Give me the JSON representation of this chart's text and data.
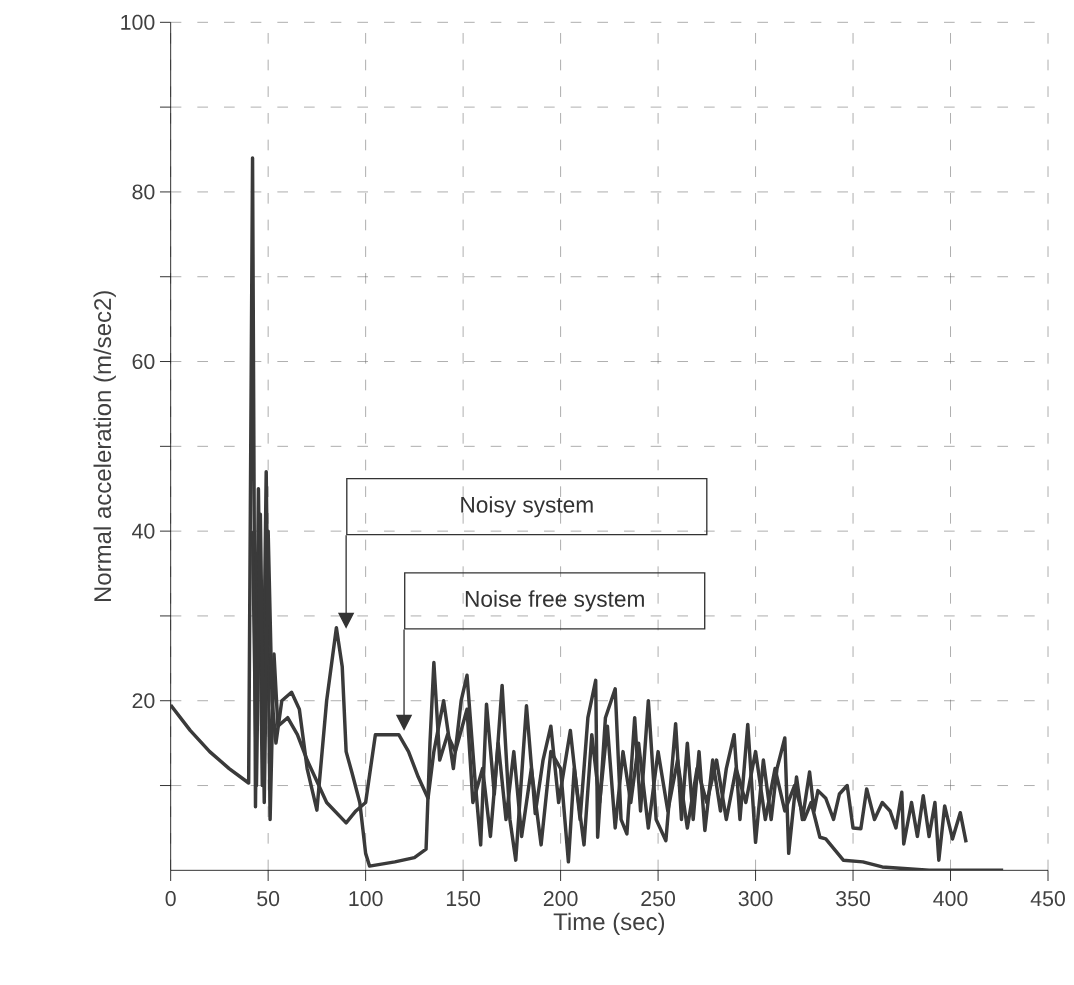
{
  "chart_data": {
    "type": "line",
    "xlabel": "Time (sec)",
    "ylabel": "Normal acceleration (m/sec2)",
    "xlim": [
      0,
      450
    ],
    "ylim": [
      0,
      100
    ],
    "xticks": [
      0,
      50,
      100,
      150,
      200,
      250,
      300,
      350,
      400,
      450
    ],
    "yticks": [
      {
        "value": 10,
        "label": null
      },
      20,
      {
        "value": 30,
        "label": null
      },
      40,
      {
        "value": 50,
        "label": null
      },
      60,
      {
        "value": 70,
        "label": null
      },
      80,
      {
        "value": 90,
        "label": null
      },
      100
    ],
    "grid": true,
    "marker": "none",
    "line_style": "solid",
    "tick_labels": "xy",
    "series": [
      {
        "color": "#3a3a3a",
        "x": [
          0,
          10,
          20,
          30,
          40,
          42,
          43.5,
          45,
          47,
          49,
          51,
          53,
          55,
          60,
          65,
          70,
          80,
          90,
          95,
          100,
          105,
          117,
          122,
          127,
          132,
          135,
          140,
          145,
          149,
          152,
          156,
          159,
          162,
          166,
          170,
          174,
          177,
          182.5,
          187,
          191,
          195,
          199,
          205,
          210,
          214,
          218,
          219,
          223,
          228,
          231,
          234,
          238,
          241,
          245,
          249,
          254,
          259,
          262,
          265,
          268,
          271,
          274,
          278,
          282,
          285,
          289,
          292,
          296,
          300,
          304,
          308,
          311,
          315,
          317,
          321,
          324,
          327.7,
          330,
          332,
          336,
          340,
          343,
          347,
          350,
          354,
          357,
          361,
          365,
          369,
          372,
          375,
          376,
          380,
          383,
          386,
          389,
          392,
          394,
          397,
          401,
          405,
          408
        ],
        "values": [
          19.5,
          16.5,
          14,
          12,
          10.3,
          84,
          7.5,
          45,
          10,
          47,
          6,
          25.5,
          17,
          18,
          16,
          13,
          8,
          5.6,
          7,
          8,
          16,
          16,
          14,
          11,
          8.5,
          14,
          20,
          12,
          20,
          23,
          11,
          3,
          19.6,
          9,
          21.8,
          6,
          1.2,
          19.4,
          6.7,
          13,
          17,
          8,
          16.5,
          6,
          18,
          22.4,
          3.9,
          18,
          21.4,
          6,
          4.3,
          18,
          7,
          20,
          6,
          3.5,
          17.3,
          6,
          15,
          6,
          14,
          4.7,
          13,
          7,
          12,
          16,
          6,
          17.2,
          3.3,
          13,
          6,
          12,
          15.6,
          2,
          11,
          6,
          11.6,
          7,
          9.4,
          8.5,
          6,
          9,
          10,
          5,
          4.9,
          9.6,
          6,
          8,
          7,
          5,
          9.2,
          3.1,
          8,
          4,
          8.8,
          4,
          8,
          1.2,
          7.6,
          3.7,
          6.8,
          3.3
        ]
      },
      {
        "color": "#3a3a3a",
        "x": [
          42,
          44,
          46,
          48,
          50,
          52,
          54,
          57,
          62,
          66,
          70,
          75,
          80,
          85,
          88,
          90,
          93,
          97,
          100,
          102,
          115,
          125,
          131,
          133,
          135,
          138,
          142,
          146,
          152,
          155,
          160,
          164,
          168,
          172,
          176,
          180,
          185,
          190,
          195,
          200,
          204,
          207,
          212,
          216,
          220,
          224,
          228,
          232,
          236,
          240,
          245,
          250,
          255,
          260,
          265,
          270,
          275,
          280,
          285,
          290,
          295,
          300,
          305,
          310,
          315,
          320,
          325,
          328.5,
          333,
          336,
          345,
          355,
          365,
          389,
          427
        ],
        "values": [
          40,
          10,
          42,
          8,
          40,
          20,
          15,
          20,
          21,
          19,
          12,
          7.1,
          20,
          28.6,
          24,
          14,
          11.5,
          8,
          2,
          0.5,
          1,
          1.5,
          2.5,
          15,
          24.5,
          13,
          16,
          14,
          19,
          8,
          12,
          4,
          15,
          6,
          14,
          4,
          12,
          3,
          14,
          12,
          1,
          12,
          3,
          16,
          8,
          17,
          5,
          14,
          8,
          15,
          5,
          14,
          7,
          13,
          5,
          12,
          8,
          13,
          6,
          12,
          8,
          14,
          6,
          12,
          7,
          10,
          6,
          8,
          3.9,
          3.7,
          1.2,
          1,
          0.4,
          0,
          0
        ]
      }
    ],
    "annotations": [
      "Noisy system",
      "Noise free system"
    ]
  }
}
